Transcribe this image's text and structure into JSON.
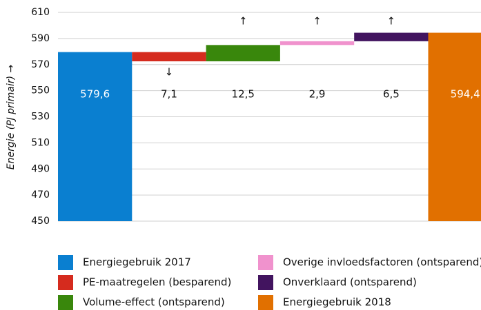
{
  "chart_data": {
    "type": "waterfall",
    "y_label": "Energie (PJ primair) →",
    "ylim": [
      450,
      610
    ],
    "yticks": [
      450,
      470,
      490,
      510,
      530,
      550,
      570,
      590,
      610
    ],
    "grid": true,
    "series": [
      {
        "name": "Energiegebruik 2017",
        "color": "#0a7fd0",
        "value": 579.6,
        "value_label": "579,6",
        "total": true,
        "arrow": null
      },
      {
        "name": "PE-maatregelen (besparend)",
        "color": "#d52b1e",
        "value": -7.1,
        "value_label": "7,1",
        "total": false,
        "arrow": "↓"
      },
      {
        "name": "Volume-effect (ontsparend)",
        "color": "#39870c",
        "value": 12.5,
        "value_label": "12,5",
        "total": false,
        "arrow": "↑"
      },
      {
        "name": "Overige invloedsfactoren (ontsparend)",
        "color": "#f092cd",
        "value": 2.9,
        "value_label": "2,9",
        "total": false,
        "arrow": "↑"
      },
      {
        "name": "Onverklaard (ontsparend)",
        "color": "#42145f",
        "value": 6.5,
        "value_label": "6,5",
        "total": false,
        "arrow": "↑"
      },
      {
        "name": "Energiegebruik 2018",
        "color": "#e17000",
        "value": 594.4,
        "value_label": "594,4",
        "total": true,
        "arrow": null
      }
    ]
  }
}
